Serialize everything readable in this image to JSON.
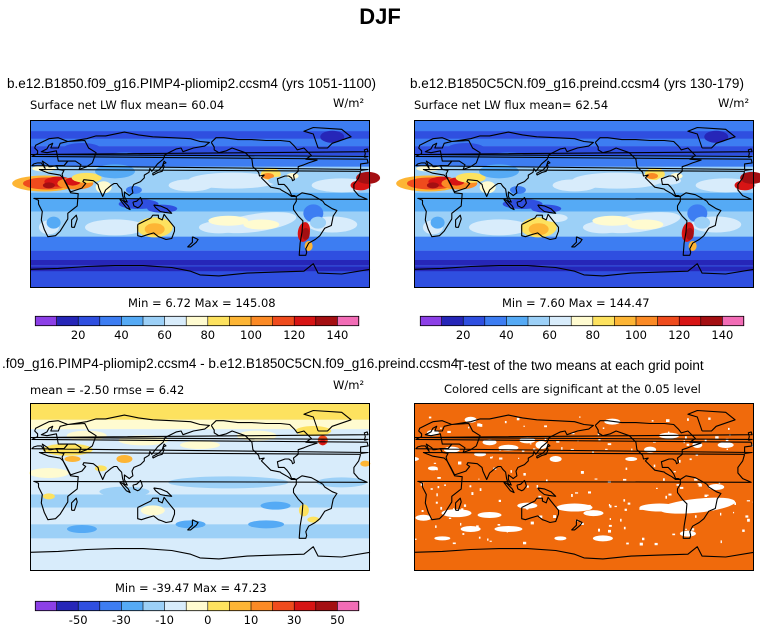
{
  "figure_title": "DJF",
  "panels": [
    {
      "case_title": "b.e12.B1850.f09_g16.PIMP4-pliomip2.ccsm4 (yrs 1051-1100)",
      "left_label": "Surface net LW flux mean=   60.04",
      "units": "W/m²",
      "range_label": "Min =   6.72  Max =  145.08",
      "colorbar_ticks": [
        "20",
        "40",
        "60",
        "80",
        "100",
        "120",
        "140"
      ],
      "field": "absolute"
    },
    {
      "case_title": "b.e12.B1850C5CN.f09_g16.preind.ccsm4 (yrs 130-179)",
      "left_label": "Surface net LW flux mean=   62.54",
      "units": "W/m²",
      "range_label": "Min =   7.60  Max =  144.47",
      "colorbar_ticks": [
        "20",
        "40",
        "60",
        "80",
        "100",
        "120",
        "140"
      ],
      "field": "absolute"
    },
    {
      "case_title": ".f09_g16.PIMP4-pliomip2.ccsm4 - b.e12.B1850C5CN.f09_g16.preind.ccsm4",
      "left_label": "mean =   -2.50     rmse =    6.42",
      "units": "W/m²",
      "range_label": "Min = -39.47  Max =   47.23",
      "colorbar_ticks": [
        "-50",
        "-30",
        "-10",
        "0",
        "10",
        "30",
        "50"
      ],
      "field": "difference"
    },
    {
      "case_title": "T-test of the two means at each grid point",
      "subtitle": "Colored cells are significant at the 0.05 level",
      "field": "significance"
    }
  ],
  "colors": {
    "absolute_scale": [
      "#8c3fe6",
      "#2626b8",
      "#2f4fe0",
      "#3d7df2",
      "#55aaf5",
      "#9cd0f7",
      "#d8ecfb",
      "#fffbd0",
      "#fde25f",
      "#fdb535",
      "#fb8a25",
      "#ef4b1d",
      "#d71414",
      "#a40f12",
      "#f26cb6"
    ],
    "difference_scale": [
      "#8c3fe6",
      "#2626b8",
      "#2f4fe0",
      "#3d7df2",
      "#55aaf5",
      "#9cd0f7",
      "#d8ecfb",
      "#fffbd0",
      "#fde25f",
      "#fdb535",
      "#fb8a25",
      "#ef4b1d",
      "#d71414",
      "#a40f12",
      "#f26cb6"
    ],
    "significance": "#f06a0c"
  }
}
